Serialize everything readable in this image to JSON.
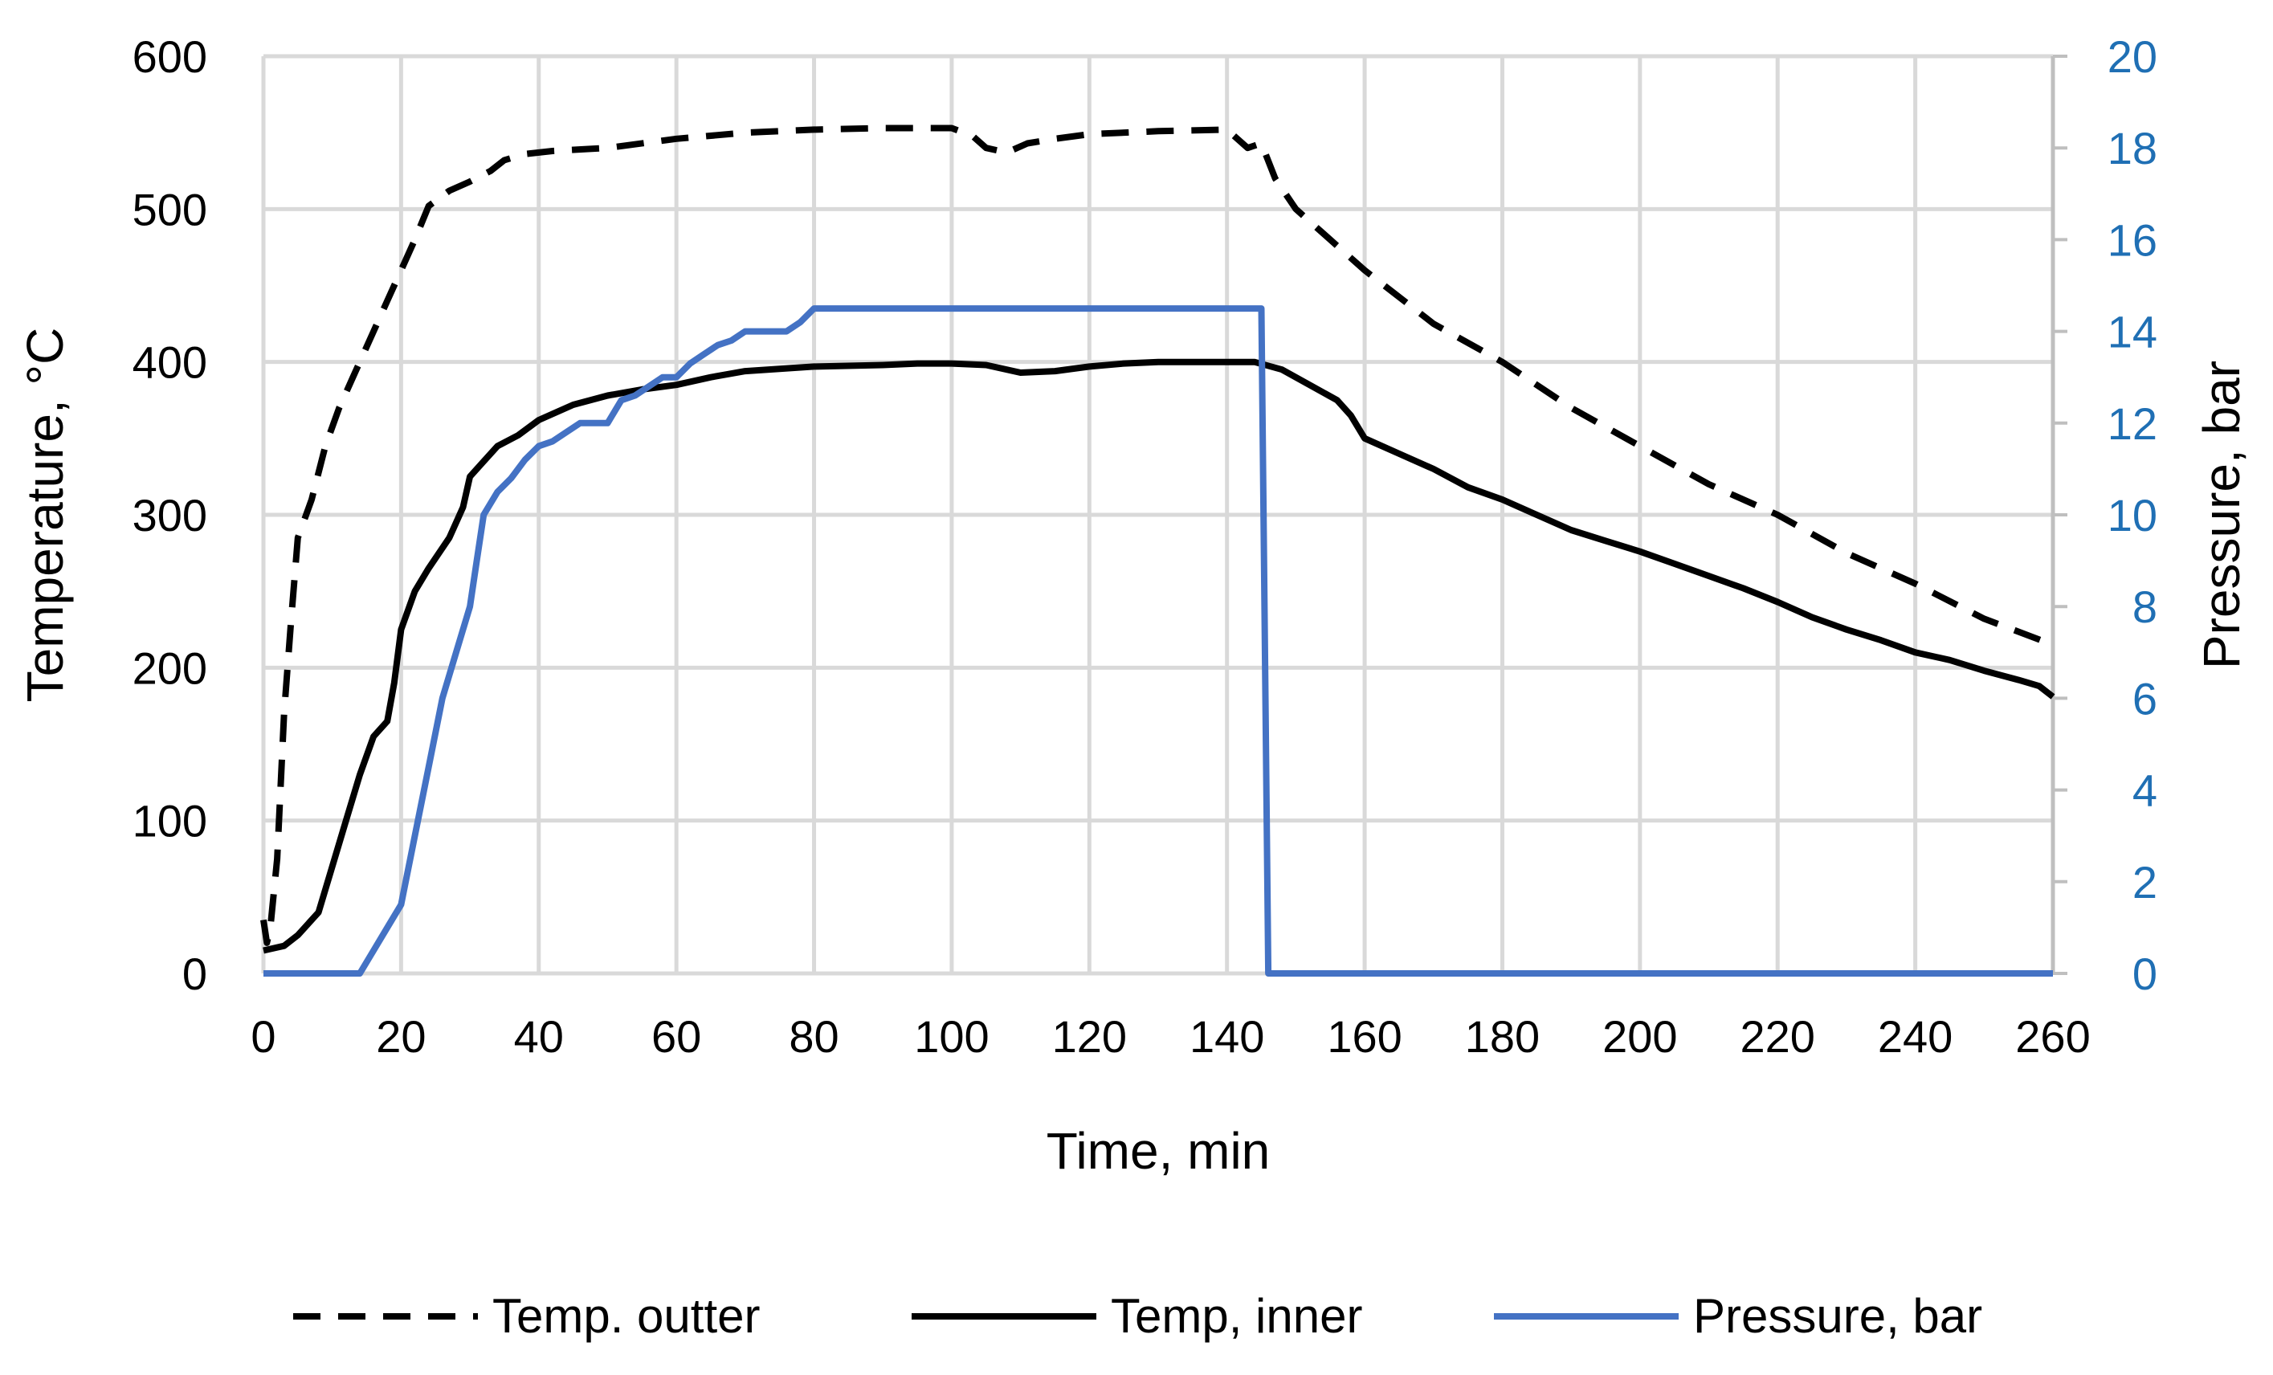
{
  "chart_data": {
    "type": "line",
    "x_axis": {
      "label": "Time, min",
      "range": [
        0,
        260
      ],
      "ticks": [
        0,
        20,
        40,
        60,
        80,
        100,
        120,
        140,
        160,
        180,
        200,
        220,
        240,
        260
      ]
    },
    "y_axis_left": {
      "label": "Temperature, °C",
      "range": [
        0,
        600
      ],
      "ticks": [
        0,
        100,
        200,
        300,
        400,
        500,
        600
      ]
    },
    "y_axis_right": {
      "label": "Pressure, bar",
      "range": [
        0,
        20
      ],
      "ticks": [
        0,
        2,
        4,
        6,
        8,
        10,
        12,
        14,
        16,
        18,
        20
      ],
      "color": "#1f6fb4"
    },
    "grid": true,
    "legend_position": "bottom",
    "series": [
      {
        "name": "Temp. outter",
        "axis": "left",
        "color": "#000000",
        "dash": "dashed",
        "points": [
          [
            0,
            35
          ],
          [
            0.5,
            20
          ],
          [
            1,
            30
          ],
          [
            2,
            75
          ],
          [
            3,
            170
          ],
          [
            4,
            230
          ],
          [
            5,
            285
          ],
          [
            7,
            310
          ],
          [
            9,
            345
          ],
          [
            11,
            370
          ],
          [
            13,
            390
          ],
          [
            16,
            420
          ],
          [
            18,
            440
          ],
          [
            20,
            460
          ],
          [
            22,
            480
          ],
          [
            24,
            502
          ],
          [
            27,
            512
          ],
          [
            30,
            518
          ],
          [
            33,
            525
          ],
          [
            35,
            532
          ],
          [
            38,
            536
          ],
          [
            42,
            538
          ],
          [
            50,
            540
          ],
          [
            60,
            546
          ],
          [
            70,
            550
          ],
          [
            80,
            552
          ],
          [
            90,
            553
          ],
          [
            100,
            553
          ],
          [
            103,
            548
          ],
          [
            105,
            540
          ],
          [
            108,
            537
          ],
          [
            111,
            543
          ],
          [
            115,
            546
          ],
          [
            120,
            549
          ],
          [
            130,
            551
          ],
          [
            140,
            552
          ],
          [
            143,
            540
          ],
          [
            145,
            543
          ],
          [
            147,
            520
          ],
          [
            150,
            500
          ],
          [
            155,
            480
          ],
          [
            160,
            460
          ],
          [
            170,
            425
          ],
          [
            180,
            400
          ],
          [
            190,
            370
          ],
          [
            200,
            345
          ],
          [
            210,
            320
          ],
          [
            220,
            300
          ],
          [
            230,
            275
          ],
          [
            240,
            255
          ],
          [
            250,
            232
          ],
          [
            260,
            215
          ]
        ]
      },
      {
        "name": "Temp, inner",
        "axis": "left",
        "color": "#000000",
        "dash": "solid",
        "points": [
          [
            0,
            15
          ],
          [
            3,
            18
          ],
          [
            5,
            25
          ],
          [
            8,
            40
          ],
          [
            10,
            70
          ],
          [
            12,
            100
          ],
          [
            14,
            130
          ],
          [
            16,
            155
          ],
          [
            18,
            165
          ],
          [
            19,
            190
          ],
          [
            20,
            225
          ],
          [
            22,
            250
          ],
          [
            24,
            265
          ],
          [
            27,
            285
          ],
          [
            29,
            305
          ],
          [
            30,
            325
          ],
          [
            32,
            335
          ],
          [
            34,
            345
          ],
          [
            37,
            352
          ],
          [
            40,
            362
          ],
          [
            45,
            372
          ],
          [
            50,
            378
          ],
          [
            55,
            382
          ],
          [
            60,
            385
          ],
          [
            65,
            390
          ],
          [
            70,
            394
          ],
          [
            80,
            397
          ],
          [
            90,
            398
          ],
          [
            95,
            399
          ],
          [
            100,
            399
          ],
          [
            105,
            398
          ],
          [
            110,
            393
          ],
          [
            115,
            394
          ],
          [
            120,
            397
          ],
          [
            125,
            399
          ],
          [
            130,
            400
          ],
          [
            140,
            400
          ],
          [
            144,
            400
          ],
          [
            148,
            395
          ],
          [
            152,
            385
          ],
          [
            156,
            375
          ],
          [
            158,
            365
          ],
          [
            160,
            350
          ],
          [
            165,
            340
          ],
          [
            170,
            330
          ],
          [
            175,
            318
          ],
          [
            180,
            310
          ],
          [
            185,
            300
          ],
          [
            190,
            290
          ],
          [
            195,
            283
          ],
          [
            200,
            276
          ],
          [
            205,
            268
          ],
          [
            210,
            260
          ],
          [
            215,
            252
          ],
          [
            220,
            243
          ],
          [
            225,
            233
          ],
          [
            230,
            225
          ],
          [
            235,
            218
          ],
          [
            240,
            210
          ],
          [
            245,
            205
          ],
          [
            250,
            198
          ],
          [
            255,
            192
          ],
          [
            258,
            188
          ],
          [
            260,
            181
          ]
        ]
      },
      {
        "name": "Pressure, bar",
        "axis": "right",
        "color": "#4472c4",
        "dash": "solid",
        "points": [
          [
            0,
            0
          ],
          [
            13,
            0
          ],
          [
            14,
            0
          ],
          [
            16,
            0.5
          ],
          [
            18,
            1
          ],
          [
            20,
            1.5
          ],
          [
            22,
            3
          ],
          [
            24,
            4.5
          ],
          [
            26,
            6
          ],
          [
            28,
            7
          ],
          [
            30,
            8
          ],
          [
            31,
            9
          ],
          [
            32,
            10
          ],
          [
            34,
            10.5
          ],
          [
            36,
            10.8
          ],
          [
            38,
            11.2
          ],
          [
            40,
            11.5
          ],
          [
            42,
            11.6
          ],
          [
            44,
            11.8
          ],
          [
            46,
            12
          ],
          [
            48,
            12
          ],
          [
            50,
            12
          ],
          [
            52,
            12.5
          ],
          [
            54,
            12.6
          ],
          [
            56,
            12.8
          ],
          [
            58,
            13
          ],
          [
            60,
            13
          ],
          [
            62,
            13.3
          ],
          [
            64,
            13.5
          ],
          [
            66,
            13.7
          ],
          [
            68,
            13.8
          ],
          [
            70,
            14
          ],
          [
            76,
            14
          ],
          [
            78,
            14.2
          ],
          [
            80,
            14.5
          ],
          [
            85,
            14.5
          ],
          [
            100,
            14.5
          ],
          [
            120,
            14.5
          ],
          [
            140,
            14.5
          ],
          [
            145,
            14.5
          ],
          [
            146,
            0
          ],
          [
            150,
            0
          ],
          [
            200,
            0
          ],
          [
            260,
            0
          ]
        ]
      }
    ]
  }
}
